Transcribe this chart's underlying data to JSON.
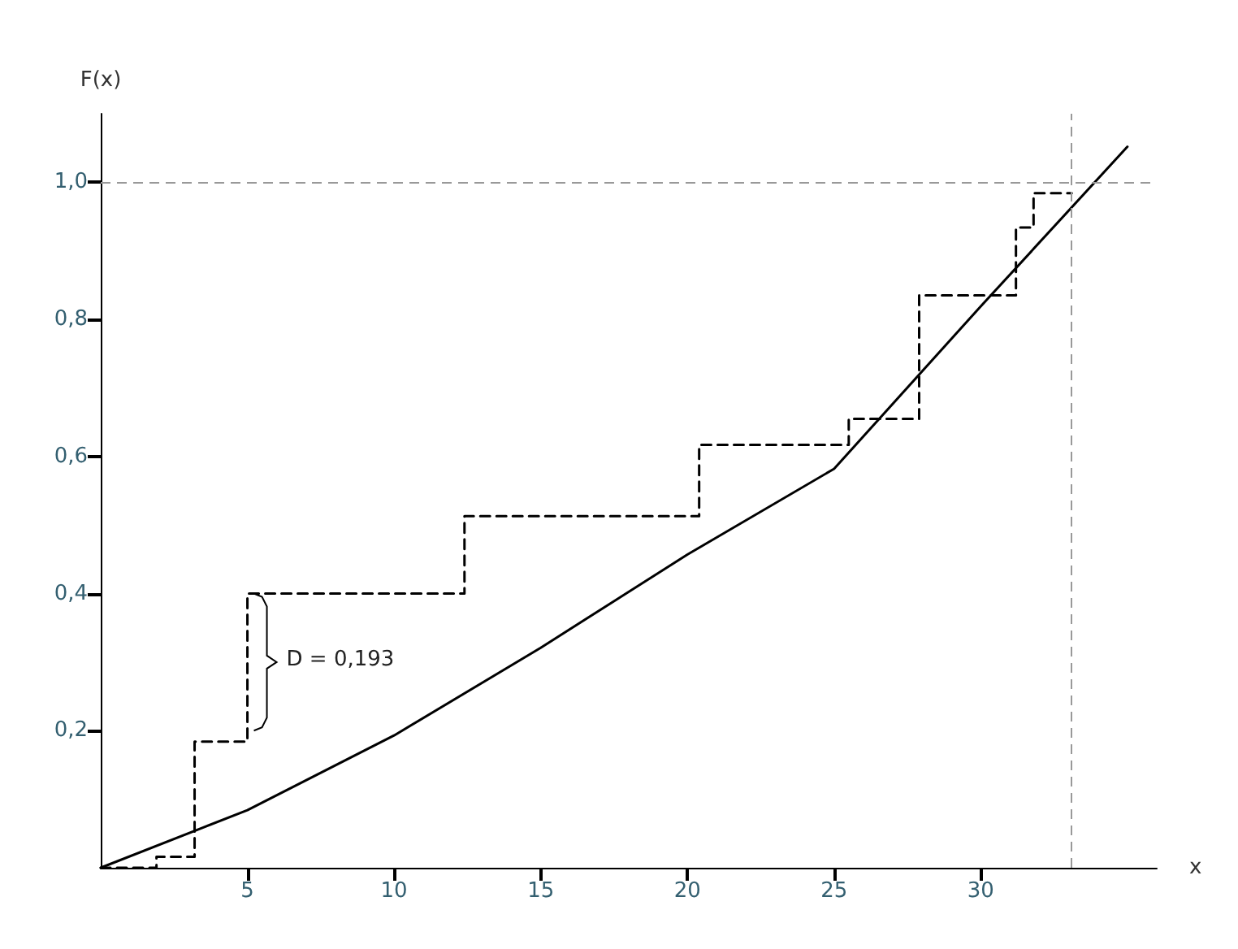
{
  "chart_data": {
    "type": "line",
    "ylabel": "F(x)",
    "xlabel": "x",
    "xlim": [
      0,
      36
    ],
    "ylim": [
      0,
      1.1
    ],
    "xticks": [
      5,
      10,
      15,
      20,
      25,
      30
    ],
    "yticks": [
      {
        "value": 0.2,
        "label": "0,2"
      },
      {
        "value": 0.4,
        "label": "0,4"
      },
      {
        "value": 0.6,
        "label": "0,6"
      },
      {
        "value": 0.8,
        "label": "0,8"
      },
      {
        "value": 1.0,
        "label": "1,0"
      }
    ],
    "series": [
      {
        "type": "step",
        "color": "#000000",
        "line_style": "dashed",
        "x": [
          0,
          1.9,
          3.2,
          5,
          12.4,
          20.4,
          25.5,
          27.9,
          31.2,
          31.8,
          33.1
        ],
        "values": [
          0,
          0.016,
          0.184,
          0.4,
          0.513,
          0.617,
          0.655,
          0.835,
          0.934,
          0.984,
          0.984
        ]
      },
      {
        "type": "line",
        "color": "#000000",
        "line_style": "solid",
        "x": [
          0,
          5,
          10,
          15,
          20,
          25,
          30,
          35
        ],
        "values": [
          0,
          0.084,
          0.193,
          0.321,
          0.457,
          0.582,
          0.819,
          1.052
        ]
      }
    ],
    "ref_lines": [
      {
        "axis": "y",
        "value": 1.0,
        "color": "#999999",
        "line_style": "dashed"
      },
      {
        "axis": "x",
        "value": 33.1,
        "color": "#999999",
        "line_style": "dashed"
      }
    ],
    "annotations": [
      {
        "text": "D = 0,193",
        "x": 5,
        "y": 0.3
      }
    ],
    "grid": false,
    "marker": "none"
  }
}
